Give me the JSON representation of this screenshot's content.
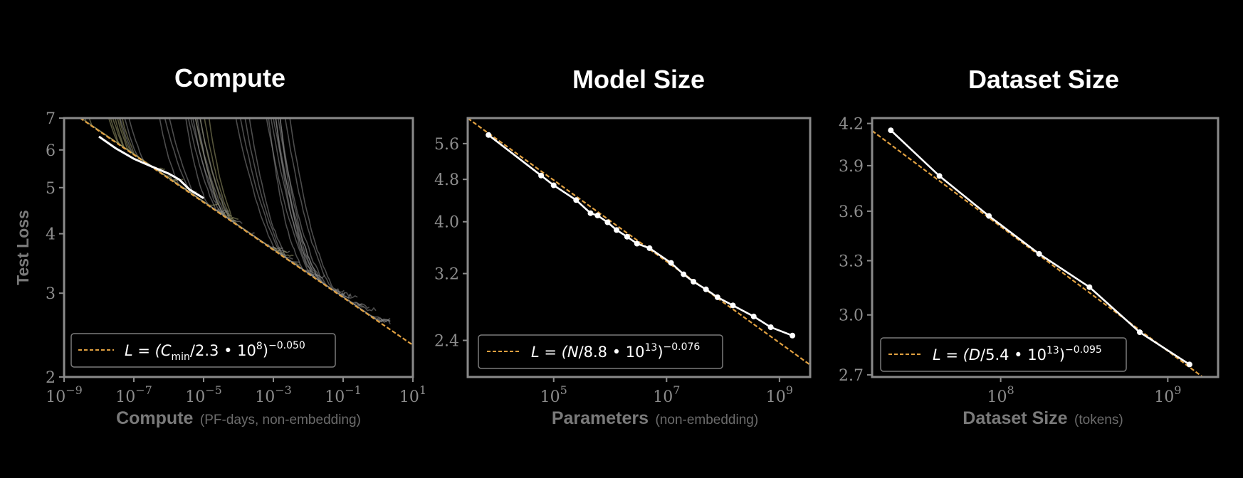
{
  "chart_data": [
    {
      "type": "line",
      "title": "Compute",
      "xlabel": "Compute",
      "xlabel_note": "(PF-days, non-embedding)",
      "ylabel": "Test Loss",
      "xscale": "log",
      "yscale": "log",
      "xlim": [
        1e-09,
        10
      ],
      "ylim": [
        2,
        7
      ],
      "x_tick_labels": [
        {
          "base": "10",
          "exp": "−9"
        },
        {
          "base": "10",
          "exp": "−7"
        },
        {
          "base": "10",
          "exp": "−5"
        },
        {
          "base": "10",
          "exp": "−3"
        },
        {
          "base": "10",
          "exp": "−1"
        },
        {
          "base": "10",
          "exp": "1"
        }
      ],
      "x_tick_values": [
        1e-09,
        1e-07,
        1e-05,
        0.001,
        0.1,
        10
      ],
      "y_ticks": [
        "7",
        "6",
        "5",
        "4",
        "3",
        "2"
      ],
      "y_tick_values": [
        7,
        6,
        5,
        4,
        3,
        2
      ],
      "legend": {
        "position": "lower-left",
        "label_parts": {
          "lhs": "L = (C",
          "sub": "min",
          "mid": "/2.3 • 10",
          "sup1": "8",
          "close": ")",
          "sup2": "−0.050"
        }
      },
      "fit": {
        "scale": 230000000.0,
        "exponent": -0.05
      },
      "frontier": {
        "x": [
          1e-08,
          3e-08,
          1e-07,
          3e-07,
          1e-06,
          2e-06,
          4e-06,
          1e-05
        ],
        "y": [
          6.4,
          6.05,
          5.75,
          5.55,
          5.35,
          5.2,
          4.95,
          4.75
        ]
      },
      "curves_note": "many individual training curves (gray, fading to olive)"
    },
    {
      "type": "line",
      "title": "Model Size",
      "xlabel": "Parameters",
      "xlabel_note": "(non-embedding)",
      "xscale": "log",
      "yscale": "log",
      "xlim": [
        3000.0,
        3500000000.0
      ],
      "ylim": [
        2.05,
        6.25
      ],
      "x_tick_labels": [
        {
          "base": "10",
          "exp": "5"
        },
        {
          "base": "10",
          "exp": "7"
        },
        {
          "base": "10",
          "exp": "9"
        }
      ],
      "x_tick_values": [
        100000.0,
        10000000.0,
        1000000000.0
      ],
      "y_ticks": [
        "5.6",
        "4.8",
        "4.0",
        "3.2",
        "2.4"
      ],
      "y_tick_values": [
        5.6,
        4.8,
        4.0,
        3.2,
        2.4
      ],
      "legend": {
        "position": "lower-left",
        "label_parts": {
          "lhs": "L = (N",
          "mid": "/8.8 • 10",
          "sup1": "13",
          "close": ")",
          "sup2": "−0.076"
        }
      },
      "fit": {
        "scale": 88000000000000.0,
        "exponent": -0.076
      },
      "series": [
        {
          "x": [
            7000.0,
            60000.0,
            100000.0,
            250000.0,
            450000.0,
            600000.0,
            900000.0,
            1300000.0,
            2000000.0,
            3000000.0,
            5000000.0,
            12000000.0,
            20000000.0,
            30000000.0,
            50000000.0,
            80000000.0,
            150000000.0,
            350000000.0,
            700000000.0,
            1700000000.0
          ],
          "y": [
            5.81,
            4.88,
            4.68,
            4.39,
            4.15,
            4.11,
            3.99,
            3.86,
            3.75,
            3.64,
            3.57,
            3.35,
            3.19,
            3.09,
            2.99,
            2.89,
            2.79,
            2.66,
            2.54,
            2.45
          ]
        }
      ]
    },
    {
      "type": "line",
      "title": "Dataset Size",
      "xlabel": "Dataset Size",
      "xlabel_note": "(tokens)",
      "xscale": "log",
      "yscale": "log",
      "xlim": [
        17000000.0,
        2000000000.0
      ],
      "ylim": [
        2.69,
        4.24
      ],
      "x_tick_labels": [
        {
          "base": "10",
          "exp": "8"
        },
        {
          "base": "10",
          "exp": "9"
        }
      ],
      "x_tick_values": [
        100000000.0,
        1000000000.0
      ],
      "y_ticks": [
        "4.2",
        "3.9",
        "3.6",
        "3.3",
        "3.0",
        "2.7"
      ],
      "y_tick_values": [
        4.2,
        3.9,
        3.6,
        3.3,
        3.0,
        2.7
      ],
      "legend": {
        "position": "lower-left",
        "label_parts": {
          "lhs": "L = (D",
          "mid": "/5.4 • 10",
          "sup1": "13",
          "close": ")",
          "sup2": "−0.095"
        }
      },
      "fit": {
        "scale": 54000000000000.0,
        "exponent": -0.095
      },
      "series": [
        {
          "x": [
            22000000.0,
            43000000.0,
            85000000.0,
            170000000.0,
            340000000.0,
            680000000.0,
            1350000000.0
          ],
          "y": [
            4.15,
            3.83,
            3.57,
            3.34,
            3.15,
            2.91,
            2.75
          ]
        }
      ]
    }
  ],
  "colors": {
    "background": "#000000",
    "frame": "#8a8a8a",
    "fit_line": "#e0a040",
    "data_line": "#ffffff",
    "curve_gray": "#8a8a8a",
    "curve_olive": "#9c9a6c"
  }
}
